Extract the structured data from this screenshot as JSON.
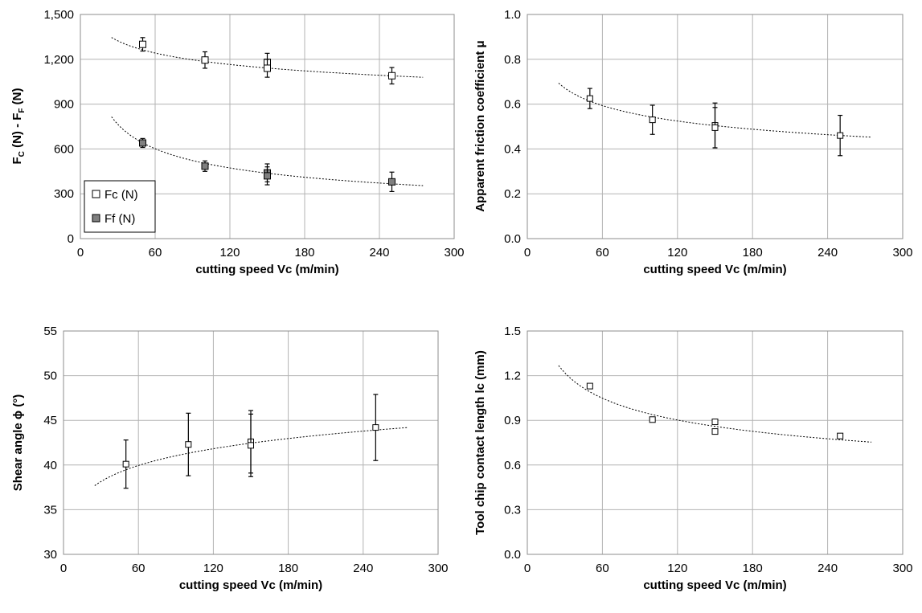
{
  "chart_data": [
    {
      "type": "scatter",
      "xlabel": "cutting speed Vc (m/min)",
      "ylabel_parts": [
        "F",
        "C",
        " (N) - F",
        "F",
        " (N)"
      ],
      "xlim": [
        0,
        300
      ],
      "ylim": [
        0,
        1500
      ],
      "xticks": [
        0,
        60,
        120,
        180,
        240,
        300
      ],
      "xtick_labels": [
        "0",
        "60",
        "120",
        "180",
        "240",
        "300"
      ],
      "yticks": [
        0,
        300,
        600,
        900,
        1200,
        1500
      ],
      "ytick_labels": [
        "0",
        "300",
        "600",
        "900",
        "1,200",
        "1,500"
      ],
      "grid": true,
      "legend_position": "bottom-left",
      "series": [
        {
          "name": "Fc (N)",
          "marker": "open-square",
          "points": [
            {
              "x": 50,
              "y": 1300,
              "err": 45
            },
            {
              "x": 100,
              "y": 1195,
              "err": 55
            },
            {
              "x": 150,
              "y": 1180,
              "err": 60
            },
            {
              "x": 150,
              "y": 1140,
              "err": 60
            },
            {
              "x": 250,
              "y": 1090,
              "err": 55
            }
          ],
          "trend": {
            "x": [
              25,
              275
            ],
            "a": 1810,
            "b": -0.092
          }
        },
        {
          "name": "Ff (N)",
          "marker": "filled-square",
          "points": [
            {
              "x": 50,
              "y": 640,
              "err": 30
            },
            {
              "x": 100,
              "y": 485,
              "err": 35
            },
            {
              "x": 150,
              "y": 440,
              "err": 60
            },
            {
              "x": 150,
              "y": 420,
              "err": 60
            },
            {
              "x": 250,
              "y": 380,
              "err": 65
            }
          ],
          "trend": {
            "x": [
              25,
              275
            ],
            "a": 2490,
            "b": -0.347
          }
        }
      ]
    },
    {
      "type": "scatter",
      "xlabel": "cutting speed Vc (m/min)",
      "ylabel": "Apparent friction coefficient μ",
      "xlim": [
        0,
        300
      ],
      "ylim": [
        0,
        1
      ],
      "xticks": [
        0,
        60,
        120,
        180,
        240,
        300
      ],
      "xtick_labels": [
        "0",
        "60",
        "120",
        "180",
        "240",
        "300"
      ],
      "yticks": [
        0,
        0.2,
        0.4,
        0.6,
        0.8,
        1.0
      ],
      "ytick_labels": [
        "0.0",
        "0.2",
        "0.4",
        "0.6",
        "0.8",
        "1.0"
      ],
      "grid": true,
      "series": [
        {
          "marker": "open-square",
          "points": [
            {
              "x": 50,
              "y": 0.625,
              "err": 0.045
            },
            {
              "x": 100,
              "y": 0.53,
              "err": 0.065
            },
            {
              "x": 150,
              "y": 0.505,
              "err": 0.1
            },
            {
              "x": 150,
              "y": 0.495,
              "err": 0.09
            },
            {
              "x": 250,
              "y": 0.46,
              "err": 0.09
            }
          ],
          "trend": {
            "x": [
              25,
              275
            ],
            "a": 1.23,
            "b": -0.178
          }
        }
      ]
    },
    {
      "type": "scatter",
      "xlabel": "cutting speed Vc (m/min)",
      "ylabel": "Shear angle ϕ (°)",
      "xlim": [
        0,
        300
      ],
      "ylim": [
        30,
        55
      ],
      "xticks": [
        0,
        60,
        120,
        180,
        240,
        300
      ],
      "xtick_labels": [
        "0",
        "60",
        "120",
        "180",
        "240",
        "300"
      ],
      "yticks": [
        30,
        35,
        40,
        45,
        50,
        55
      ],
      "ytick_labels": [
        "30",
        "35",
        "40",
        "45",
        "50",
        "55"
      ],
      "grid": true,
      "series": [
        {
          "marker": "open-square",
          "points": [
            {
              "x": 50,
              "y": 40.1,
              "err": 2.7
            },
            {
              "x": 100,
              "y": 42.3,
              "err": 3.5
            },
            {
              "x": 150,
              "y": 42.6,
              "err": 3.5
            },
            {
              "x": 150,
              "y": 42.2,
              "err": 3.5
            },
            {
              "x": 250,
              "y": 44.2,
              "err": 3.7
            }
          ],
          "trend": {
            "x": [
              25,
              275
            ],
            "a": 30.45,
            "b": 0.0663
          }
        }
      ]
    },
    {
      "type": "scatter",
      "xlabel": "cutting speed Vc (m/min)",
      "ylabel": "Tool chip contact length lc (mm)",
      "xlim": [
        0,
        300
      ],
      "ylim": [
        0,
        1.5
      ],
      "xticks": [
        0,
        60,
        120,
        180,
        240,
        300
      ],
      "xtick_labels": [
        "0",
        "60",
        "120",
        "180",
        "240",
        "300"
      ],
      "yticks": [
        0,
        0.3,
        0.6,
        0.9,
        1.2,
        1.5
      ],
      "ytick_labels": [
        "0.0",
        "0.3",
        "0.6",
        "0.9",
        "1.2",
        "1.5"
      ],
      "grid": true,
      "series": [
        {
          "marker": "open-square",
          "points": [
            {
              "x": 50,
              "y": 1.13
            },
            {
              "x": 100,
              "y": 0.905
            },
            {
              "x": 150,
              "y": 0.89
            },
            {
              "x": 150,
              "y": 0.825
            },
            {
              "x": 250,
              "y": 0.795
            }
          ],
          "trend": {
            "x": [
              25,
              275
            ],
            "a": 2.55,
            "b": -0.217
          }
        }
      ]
    }
  ]
}
